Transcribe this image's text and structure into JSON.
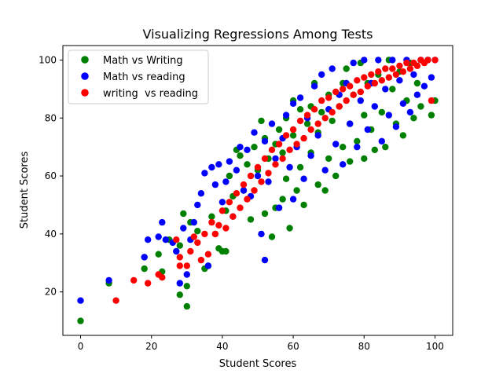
{
  "chart_data": {
    "type": "scatter",
    "title": "Visualizing Regressions Among Tests",
    "xlabel": "Student Scores",
    "ylabel": "Student Scores",
    "xlim": [
      -5,
      105
    ],
    "ylim": [
      5,
      105
    ],
    "xticks": [
      0,
      20,
      40,
      60,
      80,
      100
    ],
    "yticks": [
      20,
      40,
      60,
      80,
      100
    ],
    "grid": false,
    "legend_position": "top-left",
    "series": [
      {
        "name": "Math vs Writing",
        "color": "#008000",
        "points": [
          [
            0,
            10
          ],
          [
            8,
            23
          ],
          [
            18,
            28
          ],
          [
            18,
            32
          ],
          [
            22,
            33
          ],
          [
            23,
            27
          ],
          [
            25,
            38
          ],
          [
            28,
            19
          ],
          [
            28,
            36
          ],
          [
            29,
            47
          ],
          [
            30,
            15
          ],
          [
            30,
            22
          ],
          [
            31,
            44
          ],
          [
            33,
            41
          ],
          [
            35,
            28
          ],
          [
            36,
            29
          ],
          [
            37,
            46
          ],
          [
            38,
            40
          ],
          [
            39,
            35
          ],
          [
            40,
            34
          ],
          [
            41,
            34
          ],
          [
            41,
            48
          ],
          [
            42,
            60
          ],
          [
            43,
            53
          ],
          [
            44,
            69
          ],
          [
            45,
            67
          ],
          [
            46,
            55
          ],
          [
            47,
            64
          ],
          [
            48,
            45
          ],
          [
            49,
            70
          ],
          [
            50,
            62
          ],
          [
            51,
            79
          ],
          [
            52,
            73
          ],
          [
            52,
            47
          ],
          [
            53,
            66
          ],
          [
            54,
            39
          ],
          [
            55,
            71
          ],
          [
            55,
            49
          ],
          [
            56,
            76
          ],
          [
            57,
            68
          ],
          [
            57,
            52
          ],
          [
            58,
            80
          ],
          [
            58,
            59
          ],
          [
            59,
            42
          ],
          [
            60,
            86
          ],
          [
            60,
            74
          ],
          [
            61,
            55
          ],
          [
            62,
            83
          ],
          [
            62,
            63
          ],
          [
            63,
            50
          ],
          [
            64,
            78
          ],
          [
            65,
            84
          ],
          [
            65,
            68
          ],
          [
            66,
            92
          ],
          [
            67,
            75
          ],
          [
            67,
            57
          ],
          [
            68,
            82
          ],
          [
            69,
            55
          ],
          [
            70,
            88
          ],
          [
            70,
            66
          ],
          [
            71,
            79
          ],
          [
            72,
            60
          ],
          [
            73,
            84
          ],
          [
            74,
            92
          ],
          [
            74,
            70
          ],
          [
            75,
            97
          ],
          [
            76,
            78
          ],
          [
            76,
            65
          ],
          [
            77,
            88
          ],
          [
            78,
            72
          ],
          [
            79,
            99
          ],
          [
            80,
            81
          ],
          [
            80,
            66
          ],
          [
            81,
            92
          ],
          [
            82,
            76
          ],
          [
            83,
            69
          ],
          [
            84,
            95
          ],
          [
            85,
            82
          ],
          [
            86,
            70
          ],
          [
            87,
            100
          ],
          [
            88,
            90
          ],
          [
            89,
            78
          ],
          [
            90,
            96
          ],
          [
            91,
            74
          ],
          [
            92,
            86
          ],
          [
            93,
            99
          ],
          [
            94,
            80
          ],
          [
            95,
            92
          ],
          [
            96,
            84
          ],
          [
            98,
            100
          ],
          [
            99,
            81
          ],
          [
            100,
            86
          ]
        ]
      },
      {
        "name": "Math vs reading",
        "color": "#0000ff",
        "points": [
          [
            0,
            17
          ],
          [
            8,
            24
          ],
          [
            18,
            32
          ],
          [
            19,
            38
          ],
          [
            22,
            39
          ],
          [
            23,
            44
          ],
          [
            24,
            38
          ],
          [
            26,
            37
          ],
          [
            27,
            34
          ],
          [
            28,
            23
          ],
          [
            29,
            42
          ],
          [
            30,
            26
          ],
          [
            31,
            38
          ],
          [
            32,
            44
          ],
          [
            33,
            50
          ],
          [
            34,
            54
          ],
          [
            35,
            61
          ],
          [
            36,
            29
          ],
          [
            37,
            63
          ],
          [
            38,
            57
          ],
          [
            39,
            64
          ],
          [
            40,
            51
          ],
          [
            41,
            58
          ],
          [
            42,
            65
          ],
          [
            43,
            46
          ],
          [
            44,
            62
          ],
          [
            45,
            70
          ],
          [
            46,
            55
          ],
          [
            47,
            69
          ],
          [
            48,
            53
          ],
          [
            49,
            75
          ],
          [
            50,
            60
          ],
          [
            51,
            40
          ],
          [
            52,
            72
          ],
          [
            52,
            31
          ],
          [
            53,
            58
          ],
          [
            54,
            78
          ],
          [
            55,
            66
          ],
          [
            56,
            49
          ],
          [
            57,
            73
          ],
          [
            58,
            81
          ],
          [
            59,
            63
          ],
          [
            60,
            85
          ],
          [
            60,
            52
          ],
          [
            61,
            70
          ],
          [
            62,
            87
          ],
          [
            63,
            59
          ],
          [
            64,
            80
          ],
          [
            65,
            67
          ],
          [
            66,
            91
          ],
          [
            67,
            74
          ],
          [
            68,
            95
          ],
          [
            69,
            62
          ],
          [
            70,
            83
          ],
          [
            71,
            97
          ],
          [
            72,
            71
          ],
          [
            73,
            88
          ],
          [
            74,
            64
          ],
          [
            75,
            92
          ],
          [
            76,
            78
          ],
          [
            77,
            99
          ],
          [
            78,
            70
          ],
          [
            79,
            86
          ],
          [
            80,
            100
          ],
          [
            81,
            76
          ],
          [
            82,
            92
          ],
          [
            83,
            84
          ],
          [
            84,
            100
          ],
          [
            85,
            72
          ],
          [
            86,
            90
          ],
          [
            87,
            81
          ],
          [
            88,
            100
          ],
          [
            89,
            77
          ],
          [
            90,
            93
          ],
          [
            91,
            85
          ],
          [
            92,
            100
          ],
          [
            93,
            82
          ],
          [
            94,
            95
          ],
          [
            95,
            88
          ],
          [
            96,
            100
          ],
          [
            97,
            91
          ],
          [
            98,
            100
          ],
          [
            99,
            94
          ],
          [
            100,
            100
          ]
        ]
      },
      {
        "name": "writing  vs reading",
        "color": "#ff0000",
        "points": [
          [
            10,
            17
          ],
          [
            15,
            24
          ],
          [
            19,
            23
          ],
          [
            22,
            26
          ],
          [
            23,
            25
          ],
          [
            27,
            38
          ],
          [
            28,
            29
          ],
          [
            28,
            32
          ],
          [
            30,
            29
          ],
          [
            31,
            34
          ],
          [
            32,
            39
          ],
          [
            33,
            37
          ],
          [
            34,
            31
          ],
          [
            35,
            40
          ],
          [
            36,
            33
          ],
          [
            37,
            44
          ],
          [
            38,
            40
          ],
          [
            39,
            43
          ],
          [
            40,
            48
          ],
          [
            41,
            42
          ],
          [
            42,
            51
          ],
          [
            43,
            46
          ],
          [
            44,
            54
          ],
          [
            45,
            49
          ],
          [
            46,
            57
          ],
          [
            47,
            52
          ],
          [
            48,
            60
          ],
          [
            49,
            55
          ],
          [
            50,
            63
          ],
          [
            51,
            58
          ],
          [
            52,
            66
          ],
          [
            53,
            61
          ],
          [
            54,
            69
          ],
          [
            55,
            64
          ],
          [
            56,
            71
          ],
          [
            57,
            66
          ],
          [
            58,
            74
          ],
          [
            59,
            69
          ],
          [
            60,
            76
          ],
          [
            61,
            71
          ],
          [
            62,
            79
          ],
          [
            63,
            73
          ],
          [
            64,
            81
          ],
          [
            65,
            76
          ],
          [
            66,
            83
          ],
          [
            67,
            78
          ],
          [
            68,
            86
          ],
          [
            69,
            80
          ],
          [
            70,
            87
          ],
          [
            71,
            82
          ],
          [
            72,
            89
          ],
          [
            73,
            84
          ],
          [
            74,
            90
          ],
          [
            75,
            86
          ],
          [
            76,
            91
          ],
          [
            77,
            88
          ],
          [
            78,
            93
          ],
          [
            79,
            89
          ],
          [
            80,
            94
          ],
          [
            81,
            91
          ],
          [
            82,
            95
          ],
          [
            83,
            92
          ],
          [
            84,
            96
          ],
          [
            85,
            93
          ],
          [
            86,
            97
          ],
          [
            87,
            94
          ],
          [
            88,
            97
          ],
          [
            89,
            95
          ],
          [
            90,
            98
          ],
          [
            91,
            96
          ],
          [
            92,
            99
          ],
          [
            93,
            97
          ],
          [
            94,
            99
          ],
          [
            95,
            98
          ],
          [
            96,
            100
          ],
          [
            97,
            99
          ],
          [
            98,
            100
          ],
          [
            99,
            86
          ],
          [
            100,
            100
          ]
        ]
      }
    ]
  }
}
